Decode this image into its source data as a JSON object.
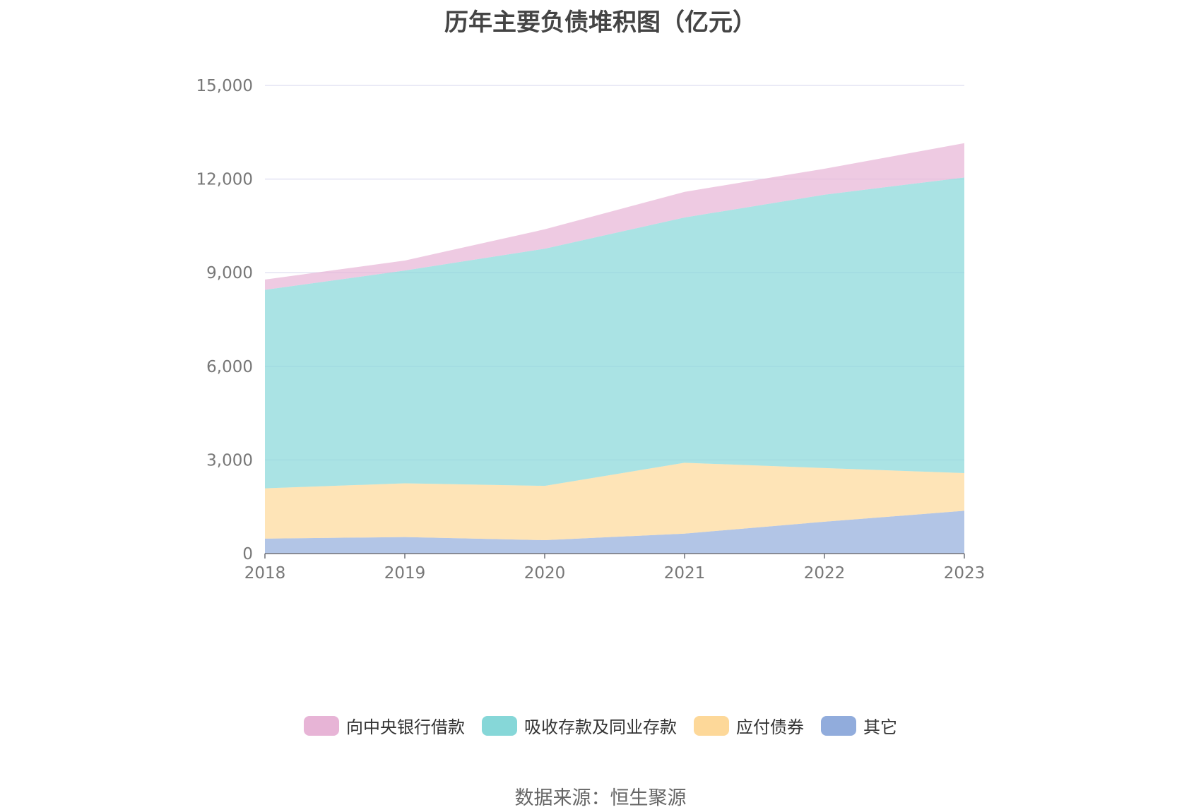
{
  "chart_data": {
    "type": "area",
    "stacked": true,
    "title": "历年主要负债堆积图（亿元）",
    "categories": [
      "2018",
      "2019",
      "2020",
      "2021",
      "2022",
      "2023"
    ],
    "yticks": [
      "0",
      "3,000",
      "6,000",
      "9,000",
      "12,000",
      "15,000"
    ],
    "ylim": [
      0,
      15000
    ],
    "grid": true,
    "legend_position": "bottom",
    "series": [
      {
        "name": "其它",
        "color": "#91acdc",
        "values": [
          480,
          530,
          430,
          640,
          1020,
          1370
        ]
      },
      {
        "name": "应付债券",
        "color": "#fdd899",
        "values": [
          1610,
          1720,
          1740,
          2270,
          1720,
          1210
        ]
      },
      {
        "name": "吸收存款及同业存款",
        "color": "#86d7d8",
        "values": [
          6360,
          6820,
          7600,
          7860,
          8760,
          9470
        ]
      },
      {
        "name": "向中央银行借款",
        "color": "#e7b4d6",
        "values": [
          330,
          320,
          620,
          820,
          830,
          1100
        ]
      }
    ]
  },
  "source": "数据来源：恒生聚源"
}
